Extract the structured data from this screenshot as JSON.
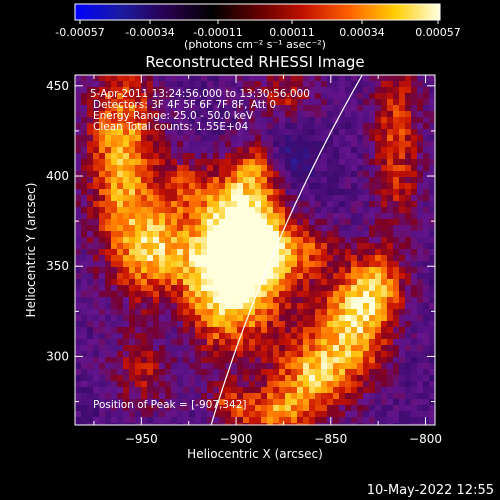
{
  "colorbar": {
    "ticks": [
      "-0.00057",
      "-0.00034",
      "-0.00011",
      "0.00011",
      "0.00034",
      "0.00057"
    ],
    "units": "(photons cm⁻² s⁻¹ asec⁻²)",
    "stops": [
      "#0000ff",
      "#1a1aa0",
      "#2a0050",
      "#000000",
      "#600000",
      "#c01000",
      "#ff6000",
      "#ffcc00",
      "#ffffe0"
    ]
  },
  "chart_data": {
    "type": "heatmap",
    "title": "Reconstructed RHESSI Image",
    "xlabel": "Heliocentric X (arcsec)",
    "ylabel": "Heliocentric Y (arcsec)",
    "xlim": [
      -985,
      -795
    ],
    "ylim": [
      262,
      456
    ],
    "xticks": [
      -950,
      -900,
      -850,
      -800
    ],
    "yticks": [
      300,
      350,
      400,
      450
    ],
    "peak": [
      -907,
      342
    ],
    "annotations": [
      "5-Apr-2011 13:24:56.000 to 13:30:56.000",
      "Detectors: 3F 4F 5F 6F 7F 8F, Att 0",
      "Energy Range: 25.0 - 50.0 keV",
      "Clean     Total counts: 1.55E+04",
      "Position of Peak = [-907,342]"
    ]
  },
  "footer": {
    "timestamp": "10-May-2022 12:55"
  }
}
